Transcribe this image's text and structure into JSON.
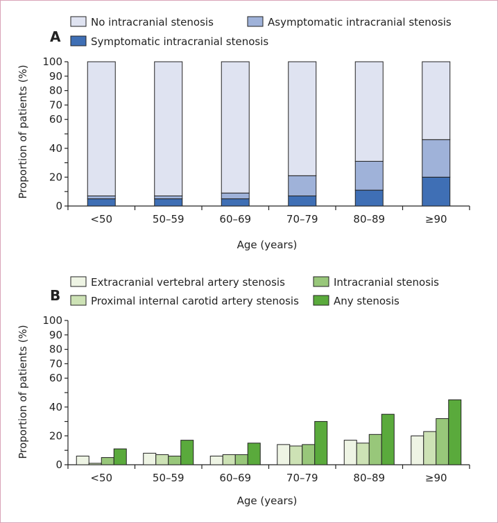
{
  "chart_data": [
    {
      "panel": "A",
      "type": "bar",
      "stacked": true,
      "categories": [
        "<50",
        "50–59",
        "60–69",
        "70–79",
        "80–89",
        "≥90"
      ],
      "series": [
        {
          "name": "Symptomatic intracranial stenosis",
          "values": [
            5,
            5,
            5,
            7,
            11,
            20
          ],
          "color": "#3f6fb5"
        },
        {
          "name": "Asymptomatic intracranial stenosis",
          "values": [
            2,
            2,
            4,
            14,
            20,
            26
          ],
          "color": "#9fb2d9"
        },
        {
          "name": "No intracranial stenosis",
          "values": [
            93,
            93,
            91,
            79,
            69,
            54
          ],
          "color": "#dfe3f1"
        }
      ],
      "legend_order": [
        "No intracranial stenosis",
        "Asymptomatic intracranial stenosis",
        "Symptomatic intracranial stenosis"
      ],
      "xlabel": "Age (years)",
      "ylabel": "Proportion of patients (%)",
      "ylim": [
        0,
        100
      ],
      "yticks": [
        0,
        20,
        40,
        60,
        80,
        100
      ],
      "grid": false,
      "legend": "top"
    },
    {
      "panel": "B",
      "type": "bar",
      "stacked": false,
      "categories": [
        "<50",
        "50–59",
        "60–69",
        "70–79",
        "80–89",
        "≥90"
      ],
      "series": [
        {
          "name": "Extracranial vertebral artery stenosis",
          "values": [
            6,
            8,
            6,
            14,
            17,
            20
          ],
          "color": "#eef4e4"
        },
        {
          "name": "Proximal internal carotid artery stenosis",
          "values": [
            1,
            7,
            7,
            13,
            15,
            23
          ],
          "color": "#cde2b5"
        },
        {
          "name": "Intracranial stenosis",
          "values": [
            5,
            6,
            7,
            14,
            21,
            32
          ],
          "color": "#98c77a"
        },
        {
          "name": "Any stenosis",
          "values": [
            11,
            17,
            15,
            30,
            35,
            45
          ],
          "color": "#5aaa3c"
        }
      ],
      "legend_order": [
        "Extracranial vertebral artery stenosis",
        "Intracranial stenosis",
        "Proximal internal carotid artery stenosis",
        "Any stenosis"
      ],
      "xlabel": "Age (years)",
      "ylabel": "Proportion of patients (%)",
      "ylim": [
        0,
        100
      ],
      "yticks": [
        0,
        10,
        20,
        30,
        40,
        50,
        60,
        70,
        80,
        90,
        100
      ],
      "ytick_labels": [
        "0",
        "20",
        "40",
        "60",
        "70",
        "80",
        "90",
        "100"
      ],
      "grid": false,
      "legend": "top"
    }
  ]
}
